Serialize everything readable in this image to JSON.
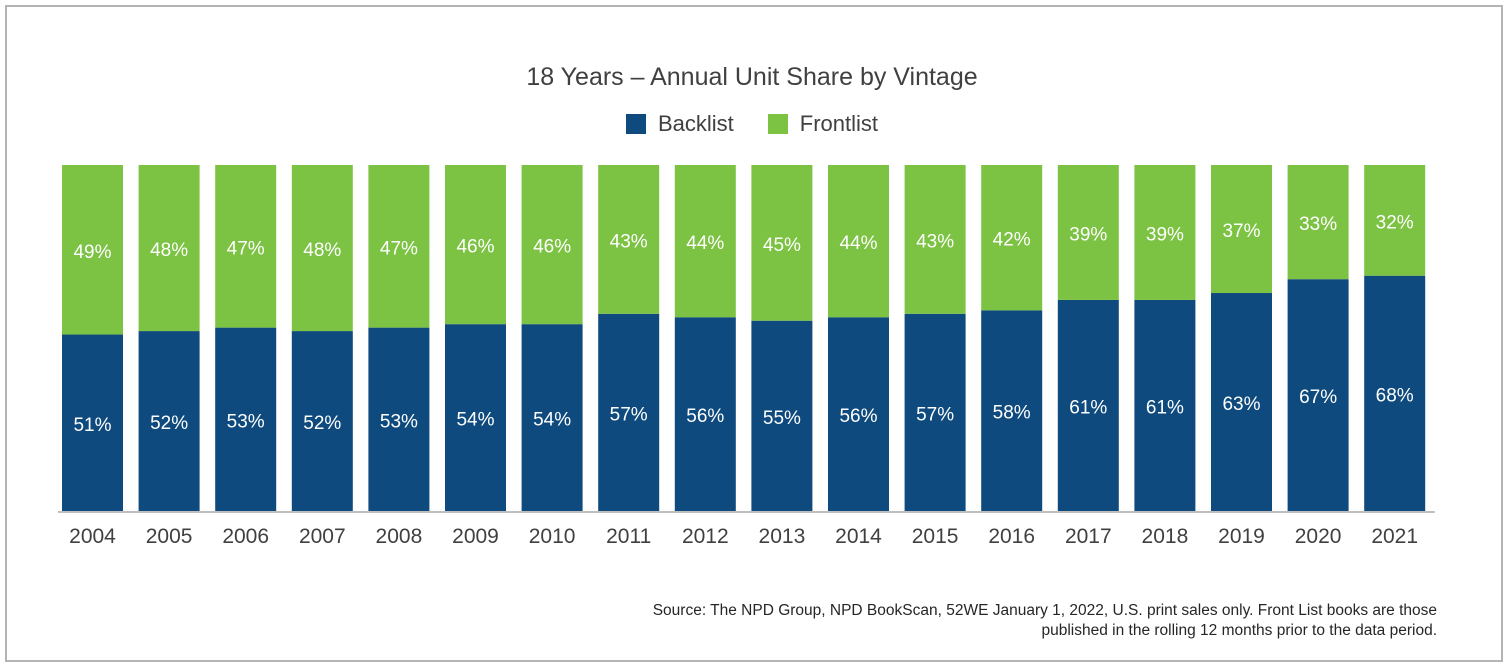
{
  "chart_data": {
    "type": "bar",
    "stacked": true,
    "title": "18 Years – Annual Unit Share by Vintage",
    "categories": [
      "2004",
      "2005",
      "2006",
      "2007",
      "2008",
      "2009",
      "2010",
      "2011",
      "2012",
      "2013",
      "2014",
      "2015",
      "2016",
      "2017",
      "2018",
      "2019",
      "2020",
      "2021"
    ],
    "series": [
      {
        "name": "Backlist",
        "color": "#0e4a7d",
        "values": [
          51,
          52,
          53,
          52,
          53,
          54,
          54,
          57,
          56,
          55,
          56,
          57,
          58,
          61,
          61,
          63,
          67,
          68
        ]
      },
      {
        "name": "Frontlist",
        "color": "#7cc243",
        "values": [
          49,
          48,
          47,
          48,
          47,
          46,
          46,
          43,
          44,
          45,
          44,
          43,
          42,
          39,
          39,
          37,
          33,
          32
        ]
      }
    ],
    "value_suffix": "%",
    "xlabel": "",
    "ylabel": "",
    "ylim": [
      0,
      100
    ],
    "legend_position": "top-center"
  },
  "source_note": {
    "line1": "Source: The NPD Group, NPD BookScan, 52WE January 1, 2022, U.S. print sales only. Front List books are those",
    "line2": "published in the rolling 12 months prior to the data period."
  }
}
